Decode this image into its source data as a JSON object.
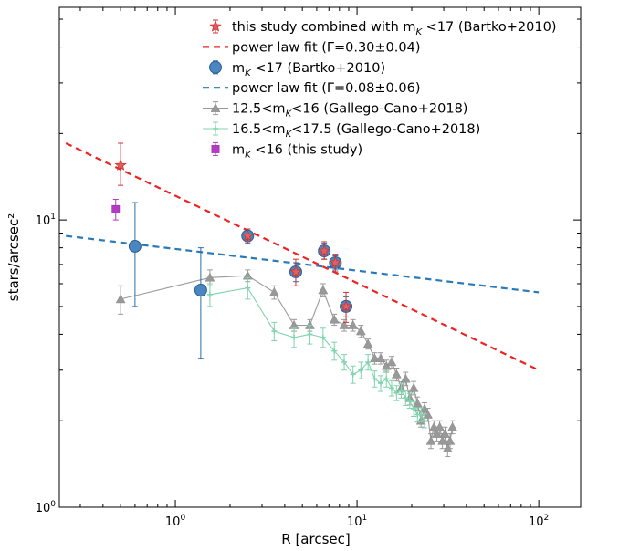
{
  "chart_data": {
    "type": "scatter",
    "xlabel": "R [arcsec]",
    "ylabel": "stars/arcsec²",
    "xscale": "log",
    "yscale": "log",
    "xlim": [
      0.23,
      170
    ],
    "ylim": [
      1,
      55
    ],
    "x_ticks": [
      {
        "value": 1,
        "base": "10",
        "exp": "0"
      },
      {
        "value": 10,
        "base": "10",
        "exp": "1"
      },
      {
        "value": 100,
        "base": "10",
        "exp": "2"
      }
    ],
    "y_ticks": [
      {
        "value": 1,
        "base": "10",
        "exp": "0"
      },
      {
        "value": 10,
        "base": "10",
        "exp": "1"
      }
    ],
    "grid": false,
    "legend_position": "top-right",
    "series": [
      {
        "key": "combined",
        "name": "this study combined with m_K <17 (Bartko+2010)",
        "label_parts": [
          "this study combined with m",
          "K",
          " <17 (Bartko+2010)"
        ],
        "marker": "star",
        "color": "#e06060",
        "edge": "#d03030",
        "points": [
          {
            "x": 0.5,
            "y": 15.5,
            "lo": 13.2,
            "hi": 18.5
          },
          {
            "x": 2.5,
            "y": 8.8,
            "lo": 8.4,
            "hi": 9.3
          },
          {
            "x": 4.6,
            "y": 6.6,
            "lo": 5.9,
            "hi": 7.3
          },
          {
            "x": 6.6,
            "y": 7.8,
            "lo": 7.3,
            "hi": 8.4
          },
          {
            "x": 7.6,
            "y": 7.1,
            "lo": 6.6,
            "hi": 7.6
          },
          {
            "x": 8.7,
            "y": 5.0,
            "lo": 4.4,
            "hi": 5.6
          }
        ]
      },
      {
        "key": "fit1",
        "name": "power law fit (Γ=0.30±0.04)",
        "marker": "line",
        "color": "#ee2222",
        "dash": "7,5",
        "line": [
          {
            "x": 0.25,
            "y": 18.5
          },
          {
            "x": 100,
            "y": 3.0
          }
        ]
      },
      {
        "key": "bartko",
        "name": "m_K <17 (Bartko+2010)",
        "label_parts": [
          "m",
          "K",
          " <17 (Bartko+2010)"
        ],
        "marker": "circle",
        "color": "#4a86bf",
        "edge": "#2a5f94",
        "points": [
          {
            "x": 0.6,
            "y": 8.1,
            "lo": 5.0,
            "hi": 11.5
          },
          {
            "x": 1.38,
            "y": 5.7,
            "lo": 3.3,
            "hi": 8.0
          },
          {
            "x": 2.5,
            "y": 8.8,
            "lo": 8.3,
            "hi": 9.3
          },
          {
            "x": 4.6,
            "y": 6.6,
            "lo": 6.1,
            "hi": 7.1
          },
          {
            "x": 6.6,
            "y": 7.8,
            "lo": 7.3,
            "hi": 8.3
          },
          {
            "x": 7.6,
            "y": 7.1,
            "lo": 6.7,
            "hi": 7.5
          },
          {
            "x": 8.7,
            "y": 5.0,
            "lo": 4.6,
            "hi": 5.4
          }
        ]
      },
      {
        "key": "fit2",
        "name": "power law fit (Γ=0.08±0.06)",
        "marker": "line",
        "color": "#2a7ab8",
        "dash": "7,5",
        "line": [
          {
            "x": 0.25,
            "y": 8.8
          },
          {
            "x": 100,
            "y": 5.6
          }
        ]
      },
      {
        "key": "gc125",
        "name": "12.5<m_K<16 (Gallego-Cano+2018)",
        "label_parts": [
          "12.5<m",
          "K",
          "<16 (Gallego-Cano+2018)"
        ],
        "marker": "triangle",
        "color": "#999999",
        "edge": "#888888",
        "points": [
          {
            "x": 0.5,
            "y": 5.3,
            "lo": 4.7,
            "hi": 5.9
          },
          {
            "x": 1.55,
            "y": 6.3,
            "lo": 5.9,
            "hi": 6.7
          },
          {
            "x": 2.5,
            "y": 6.4,
            "lo": 6.1,
            "hi": 6.7
          },
          {
            "x": 3.5,
            "y": 5.6,
            "lo": 5.3,
            "hi": 5.9
          },
          {
            "x": 4.5,
            "y": 4.3,
            "lo": 4.1,
            "hi": 4.5
          },
          {
            "x": 5.5,
            "y": 4.3,
            "lo": 4.1,
            "hi": 4.5
          },
          {
            "x": 6.5,
            "y": 5.7,
            "lo": 5.4,
            "hi": 6.0
          },
          {
            "x": 7.5,
            "y": 4.5,
            "lo": 4.3,
            "hi": 4.7
          },
          {
            "x": 8.5,
            "y": 4.3,
            "lo": 4.1,
            "hi": 4.5
          },
          {
            "x": 9.5,
            "y": 4.3,
            "lo": 4.1,
            "hi": 4.5
          },
          {
            "x": 10.5,
            "y": 4.1,
            "lo": 3.9,
            "hi": 4.3
          },
          {
            "x": 11.5,
            "y": 3.7,
            "lo": 3.55,
            "hi": 3.85
          },
          {
            "x": 12.5,
            "y": 3.3,
            "lo": 3.15,
            "hi": 3.45
          },
          {
            "x": 13.5,
            "y": 3.3,
            "lo": 3.15,
            "hi": 3.45
          },
          {
            "x": 14.5,
            "y": 3.1,
            "lo": 2.95,
            "hi": 3.25
          },
          {
            "x": 15.5,
            "y": 3.2,
            "lo": 3.05,
            "hi": 3.35
          },
          {
            "x": 16.5,
            "y": 2.9,
            "lo": 2.75,
            "hi": 3.05
          },
          {
            "x": 17.5,
            "y": 2.6,
            "lo": 2.47,
            "hi": 2.73
          },
          {
            "x": 18.5,
            "y": 2.8,
            "lo": 2.65,
            "hi": 2.95
          },
          {
            "x": 19.5,
            "y": 2.4,
            "lo": 2.27,
            "hi": 2.53
          },
          {
            "x": 20.5,
            "y": 2.6,
            "lo": 2.46,
            "hi": 2.74
          },
          {
            "x": 21.5,
            "y": 2.3,
            "lo": 2.18,
            "hi": 2.42
          },
          {
            "x": 22.5,
            "y": 2.0,
            "lo": 1.9,
            "hi": 2.1
          },
          {
            "x": 23.5,
            "y": 2.2,
            "lo": 2.09,
            "hi": 2.31
          },
          {
            "x": 24.5,
            "y": 2.1,
            "lo": 1.99,
            "hi": 2.21
          },
          {
            "x": 25.5,
            "y": 1.7,
            "lo": 1.6,
            "hi": 1.8
          },
          {
            "x": 26.5,
            "y": 1.9,
            "lo": 1.8,
            "hi": 2.0
          },
          {
            "x": 27.5,
            "y": 1.8,
            "lo": 1.7,
            "hi": 1.9
          },
          {
            "x": 28.5,
            "y": 1.9,
            "lo": 1.8,
            "hi": 2.0
          },
          {
            "x": 29.5,
            "y": 1.7,
            "lo": 1.6,
            "hi": 1.8
          },
          {
            "x": 30.5,
            "y": 1.8,
            "lo": 1.7,
            "hi": 1.9
          },
          {
            "x": 31.5,
            "y": 1.6,
            "lo": 1.5,
            "hi": 1.7
          },
          {
            "x": 32.5,
            "y": 1.7,
            "lo": 1.6,
            "hi": 1.8
          },
          {
            "x": 33.5,
            "y": 1.9,
            "lo": 1.8,
            "hi": 2.0
          }
        ]
      },
      {
        "key": "gc165",
        "name": "16.5<m_K<17.5 (Gallego-Cano+2018)",
        "label_parts": [
          "16.5<m",
          "K",
          "<17.5 (Gallego-Cano+2018)"
        ],
        "marker": "plus",
        "color": "#7fd4ac",
        "edge": "#5cc090",
        "points": [
          {
            "x": 1.55,
            "y": 5.5,
            "lo": 5.0,
            "hi": 6.0
          },
          {
            "x": 2.5,
            "y": 5.8,
            "lo": 5.3,
            "hi": 6.3
          },
          {
            "x": 3.5,
            "y": 4.1,
            "lo": 3.8,
            "hi": 4.4
          },
          {
            "x": 4.5,
            "y": 3.9,
            "lo": 3.6,
            "hi": 4.2
          },
          {
            "x": 5.5,
            "y": 4.0,
            "lo": 3.7,
            "hi": 4.3
          },
          {
            "x": 6.5,
            "y": 3.9,
            "lo": 3.6,
            "hi": 4.2
          },
          {
            "x": 7.5,
            "y": 3.5,
            "lo": 3.25,
            "hi": 3.75
          },
          {
            "x": 8.5,
            "y": 3.2,
            "lo": 3.0,
            "hi": 3.4
          },
          {
            "x": 9.5,
            "y": 2.9,
            "lo": 2.7,
            "hi": 3.1
          },
          {
            "x": 10.5,
            "y": 3.0,
            "lo": 2.8,
            "hi": 3.2
          },
          {
            "x": 11.5,
            "y": 3.2,
            "lo": 3.0,
            "hi": 3.4
          },
          {
            "x": 12.5,
            "y": 2.8,
            "lo": 2.62,
            "hi": 2.98
          },
          {
            "x": 13.5,
            "y": 2.7,
            "lo": 2.53,
            "hi": 2.87
          },
          {
            "x": 14.5,
            "y": 2.8,
            "lo": 2.62,
            "hi": 2.98
          },
          {
            "x": 15.5,
            "y": 2.6,
            "lo": 2.44,
            "hi": 2.76
          },
          {
            "x": 16.5,
            "y": 2.5,
            "lo": 2.35,
            "hi": 2.65
          },
          {
            "x": 17.5,
            "y": 2.55,
            "lo": 2.4,
            "hi": 2.7
          },
          {
            "x": 18.5,
            "y": 2.4,
            "lo": 2.26,
            "hi": 2.54
          },
          {
            "x": 19.5,
            "y": 2.35,
            "lo": 2.21,
            "hi": 2.49
          },
          {
            "x": 20.5,
            "y": 2.2,
            "lo": 2.07,
            "hi": 2.33
          },
          {
            "x": 21.5,
            "y": 2.1,
            "lo": 1.98,
            "hi": 2.22
          },
          {
            "x": 22.5,
            "y": 2.1,
            "lo": 1.98,
            "hi": 2.22
          },
          {
            "x": 23.5,
            "y": 2.0,
            "lo": 1.89,
            "hi": 2.11
          }
        ]
      },
      {
        "key": "mk16",
        "name": "m_K <16 (this study)",
        "label_parts": [
          "m",
          "K",
          " <16 (this study)"
        ],
        "marker": "square",
        "color": "#b03cc0",
        "edge": "#9a2aa8",
        "points": [
          {
            "x": 0.47,
            "y": 10.9,
            "lo": 10.0,
            "hi": 11.8
          }
        ]
      }
    ]
  }
}
